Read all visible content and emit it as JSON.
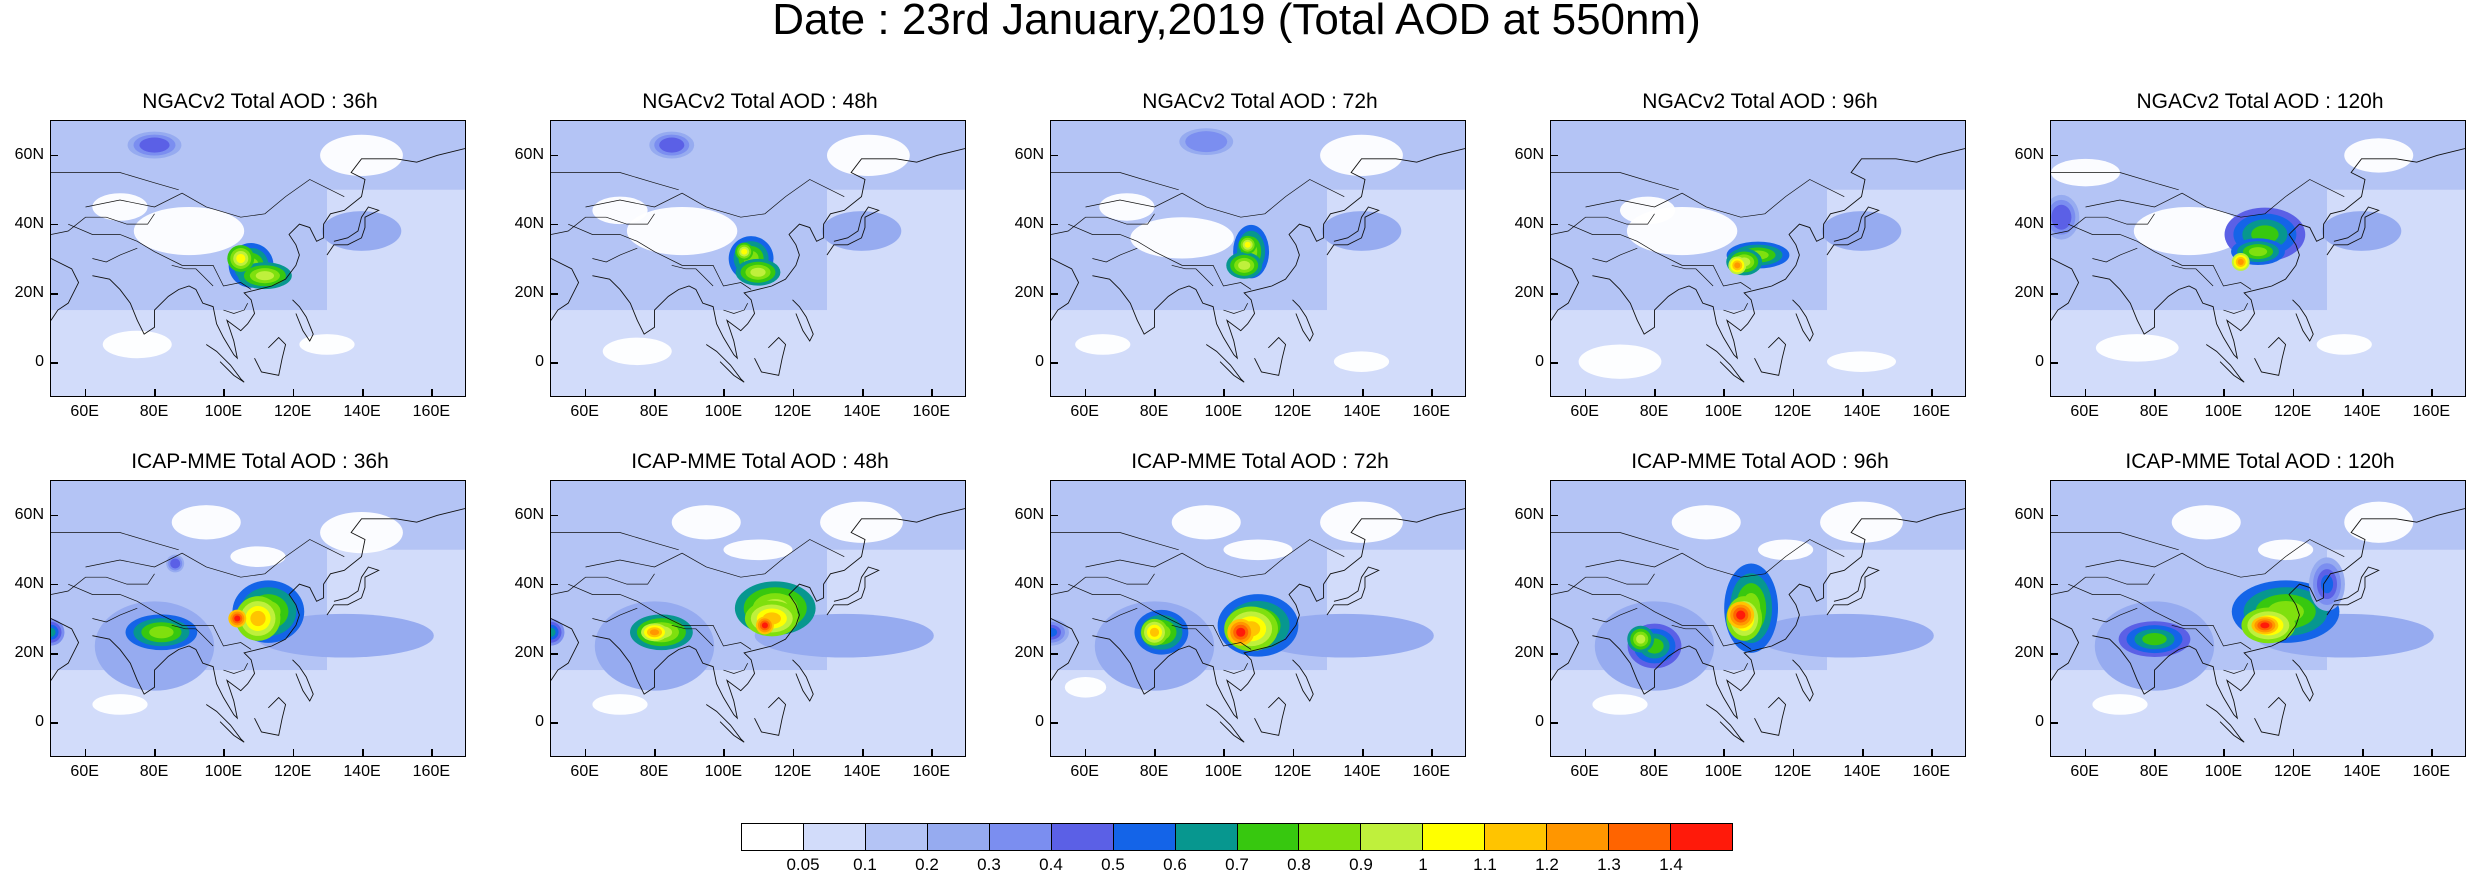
{
  "title": "Date : 23rd January,2019 (Total AOD at 550nm)",
  "lat_ticks": [
    "60N",
    "40N",
    "20N",
    "0"
  ],
  "lon_ticks": [
    "60E",
    "80E",
    "100E",
    "120E",
    "140E",
    "160E"
  ],
  "panels": [
    {
      "title": "NGACv2 Total AOD : 36h",
      "model": "NGACv2",
      "lead": "36h"
    },
    {
      "title": "NGACv2 Total AOD : 48h",
      "model": "NGACv2",
      "lead": "48h"
    },
    {
      "title": "NGACv2 Total AOD : 72h",
      "model": "NGACv2",
      "lead": "72h"
    },
    {
      "title": "NGACv2 Total AOD : 96h",
      "model": "NGACv2",
      "lead": "96h"
    },
    {
      "title": "NGACv2 Total AOD : 120h",
      "model": "NGACv2",
      "lead": "120h"
    },
    {
      "title": "ICAP-MME Total AOD : 36h",
      "model": "ICAP-MME",
      "lead": "36h"
    },
    {
      "title": "ICAP-MME Total AOD : 48h",
      "model": "ICAP-MME",
      "lead": "48h"
    },
    {
      "title": "ICAP-MME Total AOD : 72h",
      "model": "ICAP-MME",
      "lead": "72h"
    },
    {
      "title": "ICAP-MME Total AOD : 96h",
      "model": "ICAP-MME",
      "lead": "96h"
    },
    {
      "title": "ICAP-MME Total AOD : 120h",
      "model": "ICAP-MME",
      "lead": "120h"
    }
  ],
  "colorbar": {
    "labels": [
      "0.05",
      "0.1",
      "0.2",
      "0.3",
      "0.4",
      "0.5",
      "0.6",
      "0.7",
      "0.8",
      "0.9",
      "1",
      "1.1",
      "1.2",
      "1.3",
      "1.4"
    ],
    "colors": [
      "#ffffff",
      "#d2dcfa",
      "#b4c4f5",
      "#96abf0",
      "#7b8ef0",
      "#5b60e6",
      "#1464e8",
      "#07978f",
      "#37c80f",
      "#7fe00e",
      "#bff03c",
      "#ffff00",
      "#ffc400",
      "#ff9600",
      "#ff6400",
      "#ff1a0a"
    ]
  },
  "colors": {
    "ocean_low": "#d2dcfa",
    "land_low": "#c0cdf6",
    "clean_area": "#ffffff",
    "coastline": "#111111"
  }
}
